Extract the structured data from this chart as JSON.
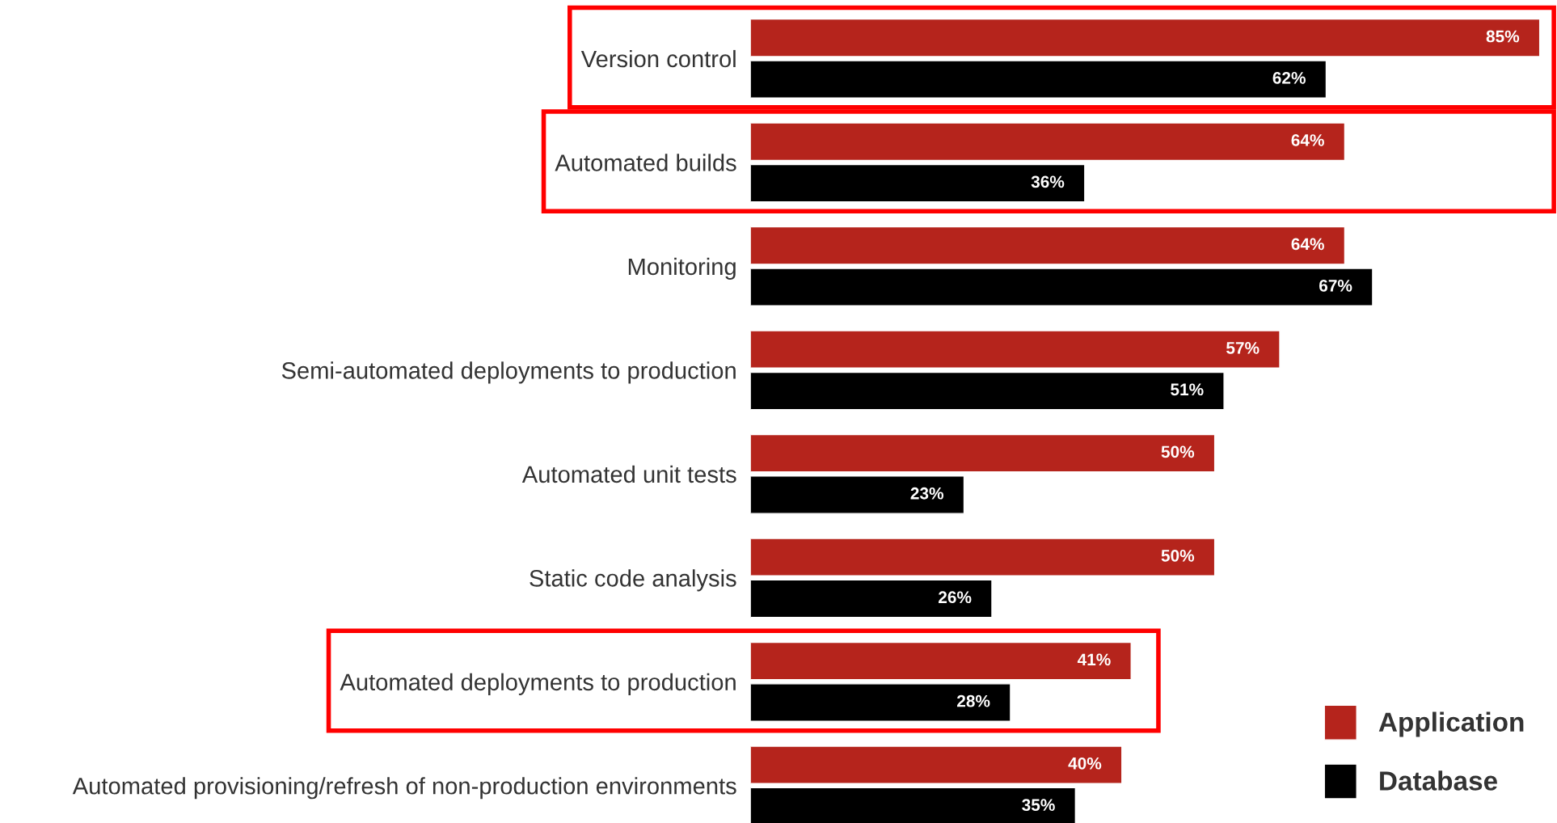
{
  "chart_data": {
    "type": "bar",
    "orientation": "horizontal",
    "categories": [
      "Version control",
      "Automated builds",
      "Monitoring",
      "Semi-automated deployments to production",
      "Automated unit tests",
      "Static code analysis",
      "Automated deployments to production",
      "Automated provisioning/refresh of non-production environments"
    ],
    "series": [
      {
        "name": "Application",
        "color": "#b5241c",
        "values": [
          85,
          64,
          64,
          57,
          50,
          50,
          41,
          40
        ],
        "value_labels": [
          "85%",
          "64%",
          "64%",
          "57%",
          "50%",
          "50%",
          "41%",
          "40%"
        ]
      },
      {
        "name": "Database",
        "color": "#000000",
        "values": [
          62,
          36,
          67,
          51,
          23,
          26,
          28,
          35
        ],
        "value_labels": [
          "62%",
          "36%",
          "67%",
          "51%",
          "23%",
          "26%",
          "28%",
          "35%"
        ]
      }
    ],
    "tick_labels": "y",
    "legend": "bottom right",
    "grid": false
  }
}
